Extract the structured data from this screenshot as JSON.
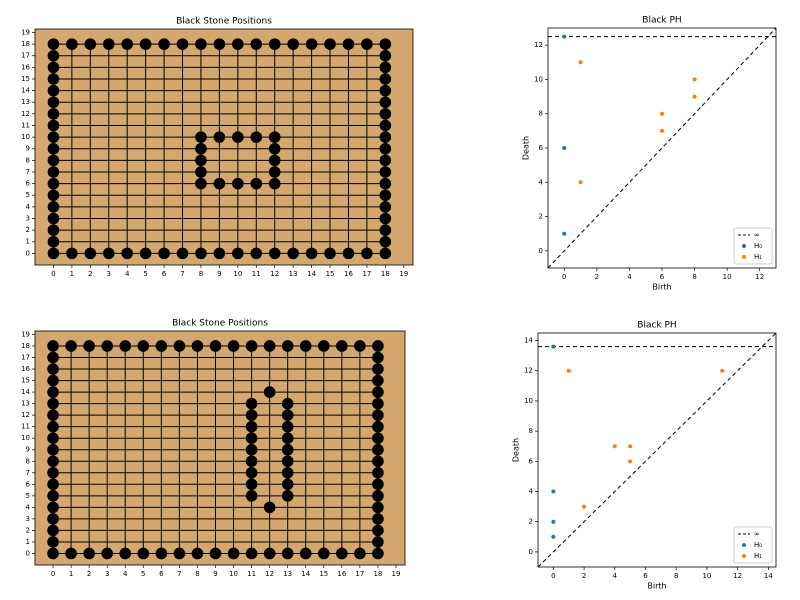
{
  "chart_data": [
    {
      "type": "board",
      "title": "Black Stone Positions",
      "background": "#d4a76e",
      "grid": true,
      "xlim": [
        -1,
        19.5
      ],
      "ylim": [
        -1,
        19.3
      ],
      "xticks": [
        0,
        1,
        2,
        3,
        4,
        5,
        6,
        7,
        8,
        9,
        10,
        11,
        12,
        13,
        14,
        15,
        16,
        17,
        18,
        19
      ],
      "yticks": [
        0,
        1,
        2,
        3,
        4,
        5,
        6,
        7,
        8,
        9,
        10,
        11,
        12,
        13,
        14,
        15,
        16,
        17,
        18,
        19
      ],
      "series": [
        {
          "color": "#000000",
          "x": [
            0,
            1,
            2,
            3,
            4,
            5,
            6,
            7,
            8,
            9,
            10,
            11,
            12,
            13,
            14,
            15,
            16,
            17,
            18,
            0,
            1,
            2,
            3,
            4,
            5,
            6,
            7,
            8,
            9,
            10,
            11,
            12,
            13,
            14,
            15,
            16,
            17,
            18,
            0,
            0,
            0,
            0,
            0,
            0,
            0,
            0,
            0,
            0,
            0,
            0,
            0,
            0,
            0,
            0,
            0,
            18,
            18,
            18,
            18,
            18,
            18,
            18,
            18,
            18,
            18,
            18,
            18,
            18,
            18,
            18,
            18,
            18,
            8,
            9,
            10,
            11,
            12,
            8,
            12,
            8,
            12,
            8,
            12,
            8,
            9,
            10,
            11,
            12
          ],
          "values": [
            0,
            0,
            0,
            0,
            0,
            0,
            0,
            0,
            0,
            0,
            0,
            0,
            0,
            0,
            0,
            0,
            0,
            0,
            0,
            18,
            18,
            18,
            18,
            18,
            18,
            18,
            18,
            18,
            18,
            18,
            18,
            18,
            18,
            18,
            18,
            18,
            18,
            18,
            1,
            2,
            3,
            4,
            5,
            6,
            7,
            8,
            9,
            10,
            11,
            12,
            13,
            14,
            15,
            16,
            17,
            1,
            2,
            3,
            4,
            5,
            6,
            7,
            8,
            9,
            10,
            11,
            12,
            13,
            14,
            15,
            16,
            17,
            10,
            10,
            10,
            10,
            10,
            9,
            9,
            8,
            8,
            7,
            7,
            6,
            6,
            6,
            6,
            6
          ]
        }
      ]
    },
    {
      "type": "persistence",
      "title": "Black PH",
      "xlabel": "Birth",
      "ylabel": "Death",
      "xlim": [
        -1,
        13
      ],
      "ylim": [
        -1,
        13
      ],
      "xticks": [
        0,
        2,
        4,
        6,
        8,
        10,
        12
      ],
      "yticks": [
        0,
        2,
        4,
        6,
        8,
        10,
        12
      ],
      "infinity": {
        "name": "∞",
        "value": 12.5
      },
      "legend": "lower right",
      "series": [
        {
          "name": "H₀",
          "color": "#1f77b4",
          "x": [
            0,
            0,
            0
          ],
          "values": [
            12.5,
            6,
            1
          ]
        },
        {
          "name": "H₁",
          "color": "#ff7f0e",
          "x": [
            1,
            1,
            6,
            6,
            8,
            8
          ],
          "values": [
            11,
            4,
            8,
            7,
            10,
            9
          ]
        }
      ]
    },
    {
      "type": "board",
      "title": "Black Stone Positions",
      "background": "#d4a76e",
      "grid": true,
      "xlim": [
        -1,
        19.5
      ],
      "ylim": [
        -1,
        19.3
      ],
      "xticks": [
        0,
        1,
        2,
        3,
        4,
        5,
        6,
        7,
        8,
        9,
        10,
        11,
        12,
        13,
        14,
        15,
        16,
        17,
        18,
        19
      ],
      "yticks": [
        0,
        1,
        2,
        3,
        4,
        5,
        6,
        7,
        8,
        9,
        10,
        11,
        12,
        13,
        14,
        15,
        16,
        17,
        18,
        19
      ],
      "series": [
        {
          "color": "#000000",
          "x": [
            0,
            1,
            2,
            3,
            4,
            5,
            6,
            7,
            8,
            9,
            10,
            11,
            12,
            13,
            14,
            15,
            16,
            17,
            18,
            0,
            1,
            2,
            3,
            4,
            5,
            6,
            7,
            8,
            9,
            10,
            11,
            12,
            13,
            14,
            15,
            16,
            17,
            18,
            0,
            0,
            0,
            0,
            0,
            0,
            0,
            0,
            0,
            0,
            0,
            0,
            0,
            0,
            0,
            0,
            0,
            18,
            18,
            18,
            18,
            18,
            18,
            18,
            18,
            18,
            18,
            18,
            18,
            18,
            18,
            18,
            18,
            18,
            11,
            11,
            11,
            11,
            11,
            11,
            11,
            11,
            11,
            13,
            13,
            13,
            13,
            13,
            13,
            13,
            13,
            13,
            12,
            12
          ],
          "values": [
            0,
            0,
            0,
            0,
            0,
            0,
            0,
            0,
            0,
            0,
            0,
            0,
            0,
            0,
            0,
            0,
            0,
            0,
            0,
            18,
            18,
            18,
            18,
            18,
            18,
            18,
            18,
            18,
            18,
            18,
            18,
            18,
            18,
            18,
            18,
            18,
            18,
            18,
            1,
            2,
            3,
            4,
            5,
            6,
            7,
            8,
            9,
            10,
            11,
            12,
            13,
            14,
            15,
            16,
            17,
            1,
            2,
            3,
            4,
            5,
            6,
            7,
            8,
            9,
            10,
            11,
            12,
            13,
            14,
            15,
            16,
            17,
            5,
            6,
            7,
            8,
            9,
            10,
            11,
            12,
            13,
            5,
            6,
            7,
            8,
            9,
            10,
            11,
            12,
            13,
            14,
            4
          ]
        }
      ]
    },
    {
      "type": "persistence",
      "title": "Black PH",
      "xlabel": "Birth",
      "ylabel": "Death",
      "xlim": [
        -1,
        14.5
      ],
      "ylim": [
        -1,
        14.5
      ],
      "xticks": [
        0,
        2,
        4,
        6,
        8,
        10,
        12,
        14
      ],
      "yticks": [
        0,
        2,
        4,
        6,
        8,
        10,
        12,
        14
      ],
      "infinity": {
        "name": "∞",
        "value": 13.6
      },
      "legend": "lower right",
      "series": [
        {
          "name": "H₀",
          "color": "#1f77b4",
          "x": [
            0,
            0,
            0,
            0
          ],
          "values": [
            13.6,
            4,
            2,
            1
          ]
        },
        {
          "name": "H₁",
          "color": "#ff7f0e",
          "x": [
            1,
            2,
            4,
            5,
            5,
            11
          ],
          "values": [
            12,
            3,
            7,
            7,
            6,
            12
          ]
        }
      ]
    }
  ]
}
